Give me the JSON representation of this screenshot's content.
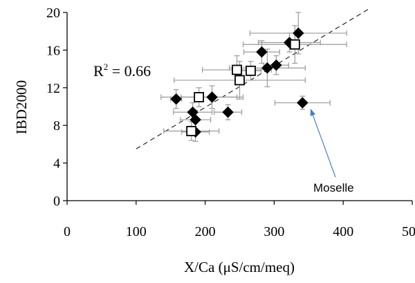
{
  "chart_data": {
    "type": "scatter",
    "xlabel": "X/Ca (μS/cm/meq)",
    "ylabel": "IBD2000",
    "xlim": [
      0,
      500
    ],
    "ylim": [
      0,
      20
    ],
    "x_ticks": [
      "0",
      "100",
      "200",
      "300",
      "400",
      "500"
    ],
    "y_ticks": [
      "0",
      "4",
      "8",
      "12",
      "16",
      "20"
    ],
    "grid": false,
    "legend": "none",
    "series": [
      {
        "marker": "filled-diamond",
        "color": "#000000",
        "points": [
          {
            "x": 158,
            "y": 10.8,
            "xerr": 8,
            "yerr": 1.0
          },
          {
            "x": 182,
            "y": 9.4,
            "xerr": 28,
            "yerr": 1.0
          },
          {
            "x": 186,
            "y": 8.6,
            "xerr": 22,
            "yerr": 1.0
          },
          {
            "x": 186,
            "y": 7.3,
            "xerr": 20,
            "yerr": 1.0
          },
          {
            "x": 210,
            "y": 11.0,
            "xerr": 45,
            "yerr": 1.2
          },
          {
            "x": 233,
            "y": 9.4,
            "xerr": 20,
            "yerr": 0.8
          },
          {
            "x": 282,
            "y": 15.8,
            "xerr": 26,
            "yerr": 1.2
          },
          {
            "x": 290,
            "y": 14.1,
            "xerr": 55,
            "yerr": 2.0
          },
          {
            "x": 303,
            "y": 14.4,
            "xerr": 18,
            "yerr": 1.0
          },
          {
            "x": 322,
            "y": 16.8,
            "xerr": 45,
            "yerr": 1.0
          },
          {
            "x": 335,
            "y": 17.8,
            "xerr": 70,
            "yerr": 2.2
          },
          {
            "x": 341,
            "y": 10.4,
            "xerr": 40,
            "yerr": 0.7
          }
        ]
      },
      {
        "marker": "open-square",
        "color": "#000000",
        "points": [
          {
            "x": 180,
            "y": 7.4,
            "xerr": 40,
            "yerr": 1.0
          },
          {
            "x": 191,
            "y": 11.0,
            "xerr": 55,
            "yerr": 1.0
          },
          {
            "x": 246,
            "y": 13.9,
            "xerr": 50,
            "yerr": 1.5
          },
          {
            "x": 250,
            "y": 12.8,
            "xerr": 95,
            "yerr": 2.0
          },
          {
            "x": 266,
            "y": 13.8,
            "xerr": 15,
            "yerr": 1.0
          },
          {
            "x": 330,
            "y": 16.6,
            "xerr": 75,
            "yerr": 2.0
          }
        ]
      }
    ],
    "trendline": {
      "style": "dashed",
      "x": [
        100,
        440
      ],
      "y": [
        5.5,
        20.5
      ]
    },
    "annotations": {
      "r2_prefix": "R",
      "r2_exponent": "2",
      "r2_value": " = 0.66",
      "arrow_label": "Moselle",
      "arrow_target": {
        "x": 350,
        "y": 9.7
      },
      "arrow_color": "#4a7fc1"
    }
  }
}
